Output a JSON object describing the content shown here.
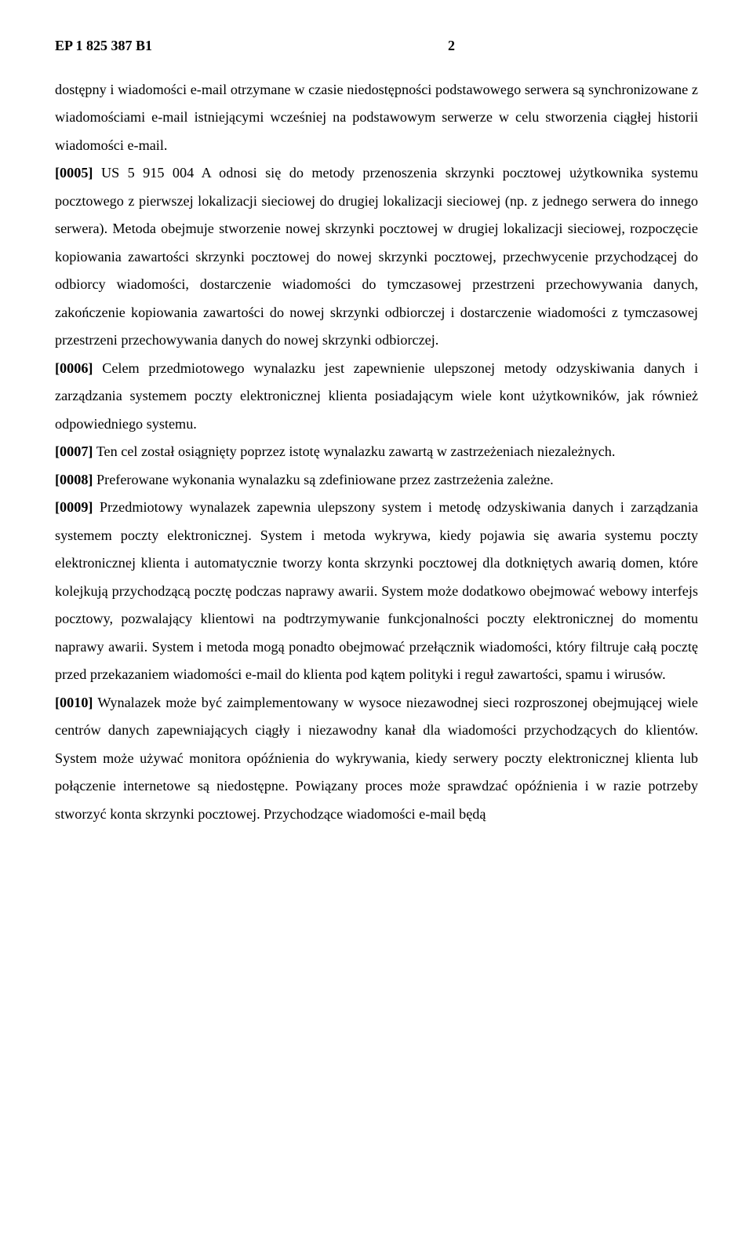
{
  "header": {
    "document_code": "EP 1 825 387 B1",
    "page_number": "2"
  },
  "content": {
    "intro": "dostępny i wiadomości e-mail otrzymane w czasie niedostępności podstawowego serwera są synchronizowane z wiadomościami e-mail istniejącymi wcześniej na podstawowym serwerze w celu stworzenia ciągłej historii wiadomości e-mail.",
    "p0005_tag": "[0005]",
    "p0005": " US 5 915 004 A odnosi się do metody przenoszenia skrzynki pocztowej użytkownika systemu pocztowego z pierwszej lokalizacji sieciowej do drugiej lokalizacji sieciowej (np. z jednego serwera do innego serwera). Metoda obejmuje stworzenie nowej skrzynki pocztowej w drugiej lokalizacji sieciowej, rozpoczęcie kopiowania zawartości skrzynki pocztowej do nowej skrzynki pocztowej, przechwycenie przychodzącej do odbiorcy wiadomości, dostarczenie wiadomości do tymczasowej przestrzeni przechowywania danych, zakończenie kopiowania zawartości do nowej skrzynki odbiorczej i dostarczenie wiadomości z tymczasowej przestrzeni przechowywania danych do nowej skrzynki odbiorczej.",
    "p0006_tag": "[0006]",
    "p0006": " Celem przedmiotowego wynalazku jest zapewnienie ulepszonej metody odzyskiwania danych i zarządzania systemem poczty elektronicznej klienta posiadającym wiele kont użytkowników, jak również odpowiedniego systemu.",
    "p0007_tag": "[0007]",
    "p0007": " Ten cel został osiągnięty poprzez istotę wynalazku zawartą w zastrzeżeniach niezależnych.",
    "p0008_tag": "[0008]",
    "p0008": " Preferowane wykonania wynalazku są zdefiniowane przez zastrzeżenia zależne.",
    "p0009_tag": "[0009]",
    "p0009": " Przedmiotowy wynalazek zapewnia ulepszony system i metodę odzyskiwania danych i zarządzania systemem poczty elektronicznej. System i metoda wykrywa, kiedy pojawia się awaria systemu poczty elektronicznej klienta i automatycznie tworzy konta skrzynki pocztowej dla dotkniętych awarią domen, które kolejkują przychodzącą pocztę podczas naprawy awarii. System może dodatkowo obejmować webowy interfejs pocztowy, pozwalający klientowi na podtrzymywanie funkcjonalności poczty elektronicznej do momentu naprawy awarii. System i metoda mogą ponadto obejmować przełącznik wiadomości, który filtruje całą pocztę przed przekazaniem wiadomości e-mail do klienta pod kątem polityki i reguł zawartości, spamu i wirusów.",
    "p0010_tag": "[0010]",
    "p0010": " Wynalazek może być zaimplementowany w wysoce niezawodnej sieci rozproszonej obejmującej wiele centrów danych zapewniających ciągły i niezawodny kanał dla wiadomości przychodzących do klientów. System może używać monitora opóźnienia do wykrywania, kiedy serwery poczty elektronicznej klienta lub połączenie internetowe są niedostępne. Powiązany proces może sprawdzać opóźnienia i w razie potrzeby stworzyć konta skrzynki pocztowej. Przychodzące wiadomości e-mail będą"
  }
}
